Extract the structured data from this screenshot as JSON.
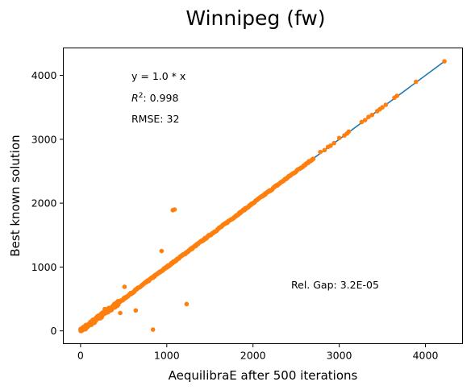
{
  "chart_data": {
    "type": "scatter",
    "title": "Winnipeg (fw)",
    "xlabel": "AequilibraE after 500 iterations",
    "ylabel": "Best known solution",
    "xlim": [
      -200,
      4430
    ],
    "ylim": [
      -200,
      4430
    ],
    "xticks": [
      0,
      1000,
      2000,
      3000,
      4000
    ],
    "yticks": [
      0,
      1000,
      2000,
      3000,
      4000
    ],
    "grid": false,
    "colors": {
      "fit_line": "#1f77b4",
      "points": "#ff7f0e"
    },
    "fit_line": {
      "slope": 1.0,
      "x": [
        0,
        4220
      ],
      "y": [
        0,
        4220
      ]
    },
    "annotations": {
      "equation": "y = 1.0 * x",
      "r2_prefix": "R",
      "r2_exponent": "2",
      "r2_value": ":  0.998",
      "rmse": "RMSE: 32",
      "rel_gap": "Rel. Gap: 3.2E-05"
    },
    "outliers": {
      "x": [
        1070,
        1090,
        940,
        510,
        280,
        640,
        460,
        840,
        1230
      ],
      "y": [
        1890,
        1900,
        1250,
        690,
        340,
        320,
        280,
        20,
        420
      ]
    },
    "upper_points": {
      "x": [
        2780,
        2830,
        2870,
        2900,
        2940,
        3000,
        3060,
        3090,
        3110,
        3260,
        3300,
        3340,
        3380,
        3440,
        3470,
        3500,
        3540,
        3640,
        3670,
        3890,
        4220
      ],
      "y": [
        2800,
        2830,
        2880,
        2900,
        2940,
        3020,
        3060,
        3090,
        3120,
        3270,
        3300,
        3350,
        3380,
        3440,
        3470,
        3500,
        3540,
        3650,
        3680,
        3900,
        4220
      ]
    },
    "diagonal_cluster": {
      "x_range": [
        0,
        2700
      ],
      "y_range": [
        0,
        2700
      ],
      "point_count": 420
    }
  }
}
